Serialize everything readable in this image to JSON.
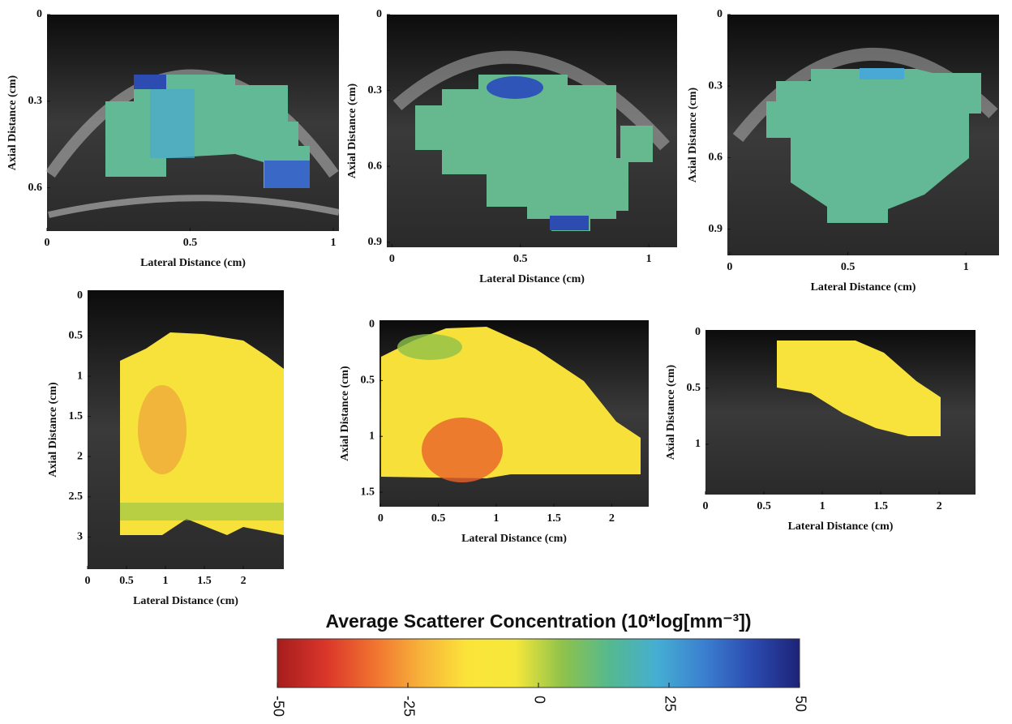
{
  "chart_data": [
    {
      "type": "heatmap",
      "xlabel": "Lateral Distance (cm)",
      "ylabel": "Axial Distance (cm)",
      "y_reversed": true,
      "xlim": [
        0,
        1.02
      ],
      "ylim": [
        0,
        0.75
      ],
      "xticks": [
        0,
        0.5,
        1
      ],
      "yticks": [
        0,
        0.3,
        0.6
      ]
    },
    {
      "type": "heatmap",
      "xlabel": "Lateral Distance (cm)",
      "ylabel": "Axial Distance (cm)",
      "y_reversed": true,
      "xlim": [
        -0.02,
        1.11
      ],
      "ylim": [
        0,
        0.92
      ],
      "xticks": [
        0,
        0.5,
        1
      ],
      "yticks": [
        0,
        0.3,
        0.6,
        0.9
      ]
    },
    {
      "type": "heatmap",
      "xlabel": "Lateral Distance (cm)",
      "ylabel": "Axial Distance (cm)",
      "y_reversed": true,
      "xlim": [
        -0.01,
        1.14
      ],
      "ylim": [
        0,
        1.01
      ],
      "xticks": [
        0,
        0.5,
        1
      ],
      "yticks": [
        0,
        0.3,
        0.6,
        0.9
      ]
    },
    {
      "type": "heatmap",
      "xlabel": "Lateral Distance (cm)",
      "ylabel": "Axial Distance (cm)",
      "y_reversed": true,
      "xlim": [
        0,
        2.52
      ],
      "ylim": [
        -0.07,
        3.4
      ],
      "xticks": [
        0,
        0.5,
        1,
        1.5,
        2
      ],
      "yticks": [
        0,
        0.5,
        1,
        1.5,
        2,
        2.5,
        3
      ]
    },
    {
      "type": "heatmap",
      "xlabel": "Lateral Distance (cm)",
      "ylabel": "Axial Distance (cm)",
      "y_reversed": true,
      "xlim": [
        -0.01,
        2.32
      ],
      "ylim": [
        -0.04,
        1.63
      ],
      "xticks": [
        0,
        0.5,
        1,
        1.5,
        2
      ],
      "yticks": [
        0,
        0.5,
        1,
        1.5
      ]
    },
    {
      "type": "heatmap",
      "xlabel": "Lateral Distance (cm)",
      "ylabel": "Axial Distance (cm)",
      "y_reversed": true,
      "xlim": [
        0,
        2.31
      ],
      "ylim": [
        -0.02,
        1.45
      ],
      "xticks": [
        0,
        0.5,
        1,
        1.5,
        2
      ],
      "yticks": [
        0,
        0.5,
        1
      ]
    },
    {
      "type": "colorbar",
      "title": "Average Scatterer Concentration (10*log[mm⁻³])",
      "xlim": [
        -50,
        50
      ],
      "xticks": [
        -50,
        -25,
        0,
        25,
        50
      ],
      "colors": [
        "#a51d1d",
        "#d9352a",
        "#f0702f",
        "#f7b13a",
        "#fbe43a",
        "#f6e83b",
        "#8fc24a",
        "#55b98f",
        "#45aed2",
        "#3b7fd0",
        "#2b4bb0",
        "#1d2378"
      ]
    }
  ]
}
